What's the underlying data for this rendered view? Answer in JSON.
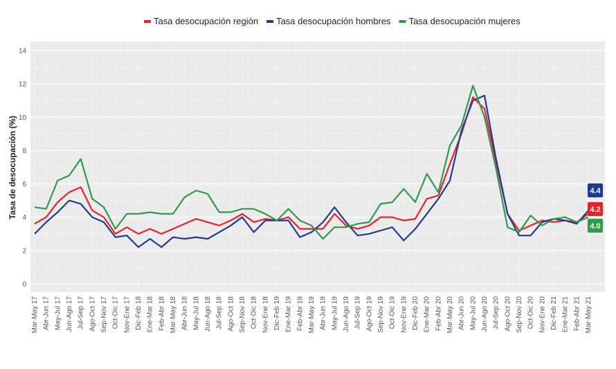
{
  "chart_data": {
    "type": "line",
    "title": "",
    "xlabel": "",
    "ylabel": "Tasa de desocupación (%)",
    "ylim": [
      0,
      14
    ],
    "yticks": [
      0,
      2,
      4,
      6,
      8,
      10,
      12,
      14
    ],
    "grid": true,
    "legend_position": "top",
    "categories": [
      "Mar-May 17",
      "Abr-Jun 17",
      "May-Jul 17",
      "Jun-Ago 17",
      "Jul-Sep 17",
      "Ago-Oct 17",
      "Sep-Nov 17",
      "Oct-Dic 17",
      "Nov-Ene 17",
      "Dic-Feb 18",
      "Ene-Mar 18",
      "Feb-Abr 18",
      "Mar-May 18",
      "Abr-Jun 18",
      "May-Jul 18",
      "Jun-Ago 18",
      "Jul-Sep 18",
      "Ago-Oct 18",
      "Sep-Nov 18",
      "Oct-Dic 18",
      "Nov-Ene 18",
      "Dic-Feb 19",
      "Ene-Mar 19",
      "Feb-Abr 19",
      "Mar-May 19",
      "Abr-Jun 19",
      "May-Jul 19",
      "Jun-Ago 19",
      "Jul-Sep 19",
      "Ago-Oct 19",
      "Sep-Nov 19",
      "Oct-Dic 19",
      "Nov-Ene 19",
      "Dic-Feb 20",
      "Ene-Mar 20",
      "Feb-Abr 20",
      "Mar-May 20",
      "Abr-Jun 20",
      "May-Jul 20",
      "Jun-Ago 20",
      "Jul-Sep 20",
      "Ago-Oct 20",
      "Sep-Nov 20",
      "Oct-Dic 20",
      "Nov-Ene 20",
      "Dic-Feb 21",
      "Ene-Mar 21",
      "Feb-Abr 21",
      "Mar-May 21"
    ],
    "series": [
      {
        "name": "Tasa desocupación región",
        "color": "#e8212a",
        "values": [
          3.6,
          4.0,
          4.9,
          5.5,
          5.8,
          4.4,
          4.0,
          3.0,
          3.4,
          3.0,
          3.3,
          3.0,
          3.3,
          3.6,
          3.9,
          3.7,
          3.5,
          3.8,
          4.2,
          3.7,
          3.9,
          3.8,
          4.0,
          3.3,
          3.3,
          3.3,
          4.2,
          3.5,
          3.3,
          3.5,
          4.0,
          4.0,
          3.8,
          3.9,
          5.1,
          5.3,
          7.2,
          9.0,
          11.2,
          10.5,
          7.3,
          4.2,
          3.2,
          3.5,
          3.8,
          3.7,
          3.8,
          3.7,
          4.2
        ],
        "end_label": "4.2"
      },
      {
        "name": "Tasa desocupación hombres",
        "color": "#1f3a93",
        "values": [
          3.0,
          3.7,
          4.3,
          5.0,
          4.8,
          4.0,
          3.7,
          2.8,
          2.9,
          2.2,
          2.7,
          2.2,
          2.8,
          2.7,
          2.8,
          2.7,
          3.1,
          3.5,
          4.0,
          3.1,
          3.8,
          3.8,
          3.8,
          2.8,
          3.1,
          3.7,
          4.6,
          3.7,
          2.9,
          3.0,
          3.2,
          3.4,
          2.6,
          3.3,
          4.2,
          5.1,
          6.2,
          9.2,
          11.0,
          11.3,
          7.5,
          4.2,
          2.9,
          2.9,
          3.7,
          3.9,
          3.8,
          3.6,
          4.4
        ],
        "end_label": "4.4"
      },
      {
        "name": "Tasa desocupación mujeres",
        "color": "#2f9a4a",
        "values": [
          4.6,
          4.5,
          6.2,
          6.5,
          7.5,
          5.1,
          4.6,
          3.3,
          4.2,
          4.2,
          4.3,
          4.2,
          4.2,
          5.2,
          5.6,
          5.4,
          4.3,
          4.3,
          4.5,
          4.5,
          4.2,
          3.8,
          4.5,
          3.8,
          3.5,
          2.7,
          3.4,
          3.4,
          3.6,
          3.7,
          4.8,
          4.9,
          5.7,
          4.9,
          6.6,
          5.5,
          8.3,
          9.5,
          11.9,
          10.0,
          6.9,
          3.4,
          3.1,
          4.1,
          3.5,
          3.9,
          4.0,
          3.7,
          4.0
        ],
        "end_label": "4.0"
      }
    ]
  }
}
